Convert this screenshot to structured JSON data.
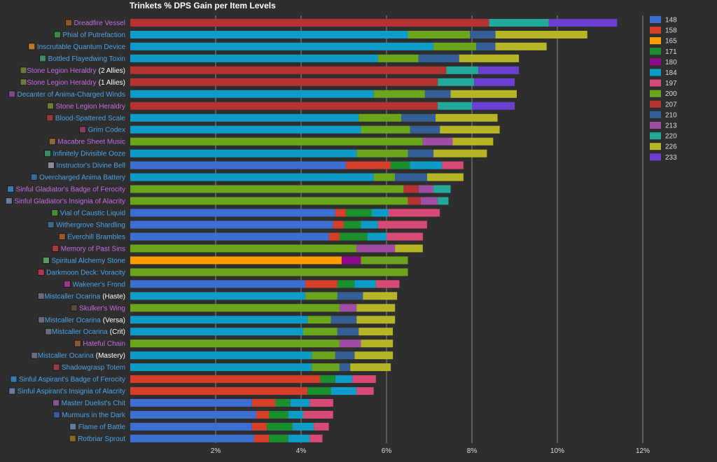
{
  "chart_data": {
    "type": "bar",
    "stacked": true,
    "orientation": "horizontal",
    "title": "Trinkets % DPS Gain per Item Levels",
    "xlim": [
      0,
      12
    ],
    "xticks": [
      "2%",
      "4%",
      "6%",
      "8%",
      "10%",
      "12%"
    ],
    "grid": true,
    "legend_position": "right",
    "legend": [
      {
        "name": "148",
        "color": "#3c6fd1"
      },
      {
        "name": "158",
        "color": "#d6402a"
      },
      {
        "name": "165",
        "color": "#ff9d00"
      },
      {
        "name": "171",
        "color": "#1a8f2e"
      },
      {
        "name": "180",
        "color": "#8e0b8e"
      },
      {
        "name": "184",
        "color": "#0d9bc7"
      },
      {
        "name": "197",
        "color": "#d84a76"
      },
      {
        "name": "200",
        "color": "#6aa51c"
      },
      {
        "name": "207",
        "color": "#b53232"
      },
      {
        "name": "210",
        "color": "#335f96"
      },
      {
        "name": "213",
        "color": "#a04ea5"
      },
      {
        "name": "220",
        "color": "#22a99a"
      },
      {
        "name": "226",
        "color": "#b5b526"
      },
      {
        "name": "233",
        "color": "#6a3fd1"
      }
    ],
    "rows": [
      {
        "label": "Dreadfire Vessel",
        "suffix": "",
        "label_color": "#c66ce0",
        "icon": "vessel-icon",
        "icon_color": "#8a5a2a",
        "segments": [
          [
            "207",
            8.4
          ],
          [
            "220",
            1.4
          ],
          [
            "233",
            1.6
          ]
        ]
      },
      {
        "label": "Phial of Putrefaction",
        "suffix": "",
        "label_color": "#4fa3e6",
        "icon": "phial-icon",
        "icon_color": "#3f8a3f",
        "segments": [
          [
            "184",
            6.5
          ],
          [
            "200",
            1.45
          ],
          [
            "210",
            0.6
          ],
          [
            "226",
            2.15
          ]
        ]
      },
      {
        "label": "Inscrutable Quantum Device",
        "suffix": "",
        "label_color": "#4fa3e6",
        "icon": "device-icon",
        "icon_color": "#c0782a",
        "segments": [
          [
            "184",
            7.1
          ],
          [
            "200",
            1.0
          ],
          [
            "210",
            0.45
          ],
          [
            "226",
            1.2
          ]
        ]
      },
      {
        "label": "Bottled Flayedwing Toxin",
        "suffix": "",
        "label_color": "#4fa3e6",
        "icon": "bottle-icon",
        "icon_color": "#3f8a6a",
        "segments": [
          [
            "184",
            5.8
          ],
          [
            "200",
            0.95
          ],
          [
            "210",
            0.95
          ],
          [
            "226",
            1.4
          ]
        ]
      },
      {
        "label": "Stone Legion Heraldry",
        "suffix": "(2 Allies)",
        "label_color": "#c66ce0",
        "icon": "heraldry-icon",
        "icon_color": "#6b7a3a",
        "segments": [
          [
            "207",
            7.4
          ],
          [
            "220",
            0.75
          ],
          [
            "233",
            0.95
          ]
        ]
      },
      {
        "label": "Stone Legion Heraldry",
        "suffix": "(1 Allies)",
        "label_color": "#c66ce0",
        "icon": "heraldry-icon",
        "icon_color": "#6b7a3a",
        "segments": [
          [
            "207",
            7.2
          ],
          [
            "220",
            0.85
          ],
          [
            "233",
            0.95
          ]
        ]
      },
      {
        "label": "Decanter of Anima-Charged Winds",
        "suffix": "",
        "label_color": "#4fa3e6",
        "icon": "decanter-icon",
        "icon_color": "#7a4a8a",
        "segments": [
          [
            "184",
            5.7
          ],
          [
            "200",
            1.2
          ],
          [
            "210",
            0.6
          ],
          [
            "226",
            1.55
          ]
        ]
      },
      {
        "label": "Stone Legion Heraldry",
        "suffix": "",
        "label_color": "#c66ce0",
        "icon": "heraldry-icon",
        "icon_color": "#6b7a3a",
        "segments": [
          [
            "207",
            7.2
          ],
          [
            "220",
            0.8
          ],
          [
            "233",
            1.0
          ]
        ]
      },
      {
        "label": "Blood-Spattered Scale",
        "suffix": "",
        "label_color": "#4fa3e6",
        "icon": "scale-icon",
        "icon_color": "#9a3a3a",
        "segments": [
          [
            "184",
            5.35
          ],
          [
            "200",
            1.0
          ],
          [
            "210",
            0.8
          ],
          [
            "226",
            1.45
          ]
        ]
      },
      {
        "label": "Grim Codex",
        "suffix": "",
        "label_color": "#4fa3e6",
        "icon": "codex-icon",
        "icon_color": "#8a3a5a",
        "segments": [
          [
            "184",
            5.4
          ],
          [
            "200",
            1.15
          ],
          [
            "210",
            0.7
          ],
          [
            "226",
            1.4
          ]
        ]
      },
      {
        "label": "Macabre Sheet Music",
        "suffix": "",
        "label_color": "#c66ce0",
        "icon": "sheet-music-icon",
        "icon_color": "#8a6a3a",
        "segments": [
          [
            "200",
            6.85
          ],
          [
            "213",
            0.7
          ],
          [
            "226",
            0.95
          ]
        ]
      },
      {
        "label": "Infinitely Divisible Ooze",
        "suffix": "",
        "label_color": "#4fa3e6",
        "icon": "ooze-icon",
        "icon_color": "#3a8a6a",
        "segments": [
          [
            "184",
            5.3
          ],
          [
            "200",
            1.2
          ],
          [
            "210",
            0.6
          ],
          [
            "226",
            1.25
          ]
        ]
      },
      {
        "label": "Instructor's Divine Bell",
        "suffix": "",
        "label_color": "#4fa3e6",
        "icon": "bell-icon",
        "icon_color": "#8a8aa0",
        "segments": [
          [
            "148",
            5.05
          ],
          [
            "158",
            1.05
          ],
          [
            "171",
            0.45
          ],
          [
            "184",
            0.75
          ],
          [
            "197",
            0.5
          ]
        ]
      },
      {
        "label": "Overcharged Anima Battery",
        "suffix": "",
        "label_color": "#4fa3e6",
        "icon": "battery-icon",
        "icon_color": "#3a6a9a",
        "segments": [
          [
            "184",
            5.7
          ],
          [
            "200",
            0.5
          ],
          [
            "210",
            0.75
          ],
          [
            "226",
            0.85
          ]
        ]
      },
      {
        "label": "Sinful Gladiator's Badge of Ferocity",
        "suffix": "",
        "label_color": "#c66ce0",
        "icon": "badge-icon",
        "icon_color": "#3a7ab0",
        "segments": [
          [
            "200",
            6.4
          ],
          [
            "207",
            0.35
          ],
          [
            "213",
            0.35
          ],
          [
            "220",
            0.4
          ]
        ]
      },
      {
        "label": "Sinful Gladiator's Insignia of Alacrity",
        "suffix": "",
        "label_color": "#c66ce0",
        "icon": "insignia-icon",
        "icon_color": "#6a7a9a",
        "segments": [
          [
            "200",
            6.5
          ],
          [
            "207",
            0.3
          ],
          [
            "213",
            0.4
          ],
          [
            "220",
            0.25
          ]
        ]
      },
      {
        "label": "Vial of Caustic Liquid",
        "suffix": "",
        "label_color": "#4fa3e6",
        "icon": "vial-icon",
        "icon_color": "#4a8a3a",
        "segments": [
          [
            "148",
            4.8
          ],
          [
            "158",
            0.25
          ],
          [
            "171",
            0.6
          ],
          [
            "184",
            0.4
          ],
          [
            "197",
            1.2
          ]
        ]
      },
      {
        "label": "Withergrove Shardling",
        "suffix": "",
        "label_color": "#4fa3e6",
        "icon": "shardling-icon",
        "icon_color": "#3a6a8a",
        "segments": [
          [
            "148",
            4.75
          ],
          [
            "158",
            0.25
          ],
          [
            "171",
            0.4
          ],
          [
            "184",
            0.4
          ],
          [
            "197",
            1.15
          ]
        ]
      },
      {
        "label": "Everchill Brambles",
        "suffix": "",
        "label_color": "#4fa3e6",
        "icon": "brambles-icon",
        "icon_color": "#9a5a2a",
        "segments": [
          [
            "148",
            4.65
          ],
          [
            "158",
            0.25
          ],
          [
            "171",
            0.65
          ],
          [
            "184",
            0.45
          ],
          [
            "197",
            0.85
          ]
        ]
      },
      {
        "label": "Memory of Past Sins",
        "suffix": "",
        "label_color": "#c66ce0",
        "icon": "memory-icon",
        "icon_color": "#b03a3a",
        "segments": [
          [
            "200",
            5.3
          ],
          [
            "213",
            0.9
          ],
          [
            "226",
            0.65
          ]
        ]
      },
      {
        "label": "Spiritual Alchemy Stone",
        "suffix": "",
        "label_color": "#4fa3e6",
        "icon": "stone-icon",
        "icon_color": "#5a9a5a",
        "segments": [
          [
            "165",
            4.95
          ],
          [
            "180",
            0.45
          ],
          [
            "200",
            1.1
          ]
        ]
      },
      {
        "label": "Darkmoon Deck: Voracity",
        "suffix": "",
        "label_color": "#4fa3e6",
        "icon": "deck-icon",
        "icon_color": "#b03a4a",
        "segments": [
          [
            "200",
            6.5
          ]
        ]
      },
      {
        "label": "Wakener's Frond",
        "suffix": "",
        "label_color": "#4fa3e6",
        "icon": "frond-icon",
        "icon_color": "#9a3a8a",
        "segments": [
          [
            "148",
            4.1
          ],
          [
            "158",
            0.75
          ],
          [
            "171",
            0.4
          ],
          [
            "184",
            0.5
          ],
          [
            "197",
            0.55
          ]
        ]
      },
      {
        "label": "Mistcaller Ocarina",
        "suffix": "(Haste)",
        "label_color": "#4fa3e6",
        "icon": "ocarina-icon",
        "icon_color": "#6a6a7a",
        "segments": [
          [
            "184",
            4.1
          ],
          [
            "200",
            0.75
          ],
          [
            "210",
            0.6
          ],
          [
            "226",
            0.8
          ]
        ]
      },
      {
        "label": "Skulker's Wing",
        "suffix": "",
        "label_color": "#c66ce0",
        "icon": "wing-icon",
        "icon_color": "#5a4a3a",
        "segments": [
          [
            "200",
            4.9
          ],
          [
            "213",
            0.4
          ],
          [
            "226",
            0.9
          ]
        ]
      },
      {
        "label": "Mistcaller Ocarina",
        "suffix": "(Versa)",
        "label_color": "#4fa3e6",
        "icon": "ocarina-icon",
        "icon_color": "#6a6a7a",
        "segments": [
          [
            "184",
            4.15
          ],
          [
            "200",
            0.55
          ],
          [
            "210",
            0.6
          ],
          [
            "226",
            0.9
          ]
        ]
      },
      {
        "label": "Mistcaller Ocarina",
        "suffix": "(Crit)",
        "label_color": "#4fa3e6",
        "icon": "ocarina-icon",
        "icon_color": "#6a6a7a",
        "segments": [
          [
            "184",
            4.05
          ],
          [
            "200",
            0.8
          ],
          [
            "210",
            0.5
          ],
          [
            "226",
            0.8
          ]
        ]
      },
      {
        "label": "Hateful Chain",
        "suffix": "",
        "label_color": "#c66ce0",
        "icon": "chain-icon",
        "icon_color": "#8a5a3a",
        "segments": [
          [
            "200",
            4.9
          ],
          [
            "213",
            0.5
          ],
          [
            "226",
            0.75
          ]
        ]
      },
      {
        "label": "Mistcaller Ocarina",
        "suffix": "(Mastery)",
        "label_color": "#4fa3e6",
        "icon": "ocarina-icon",
        "icon_color": "#6a6a7a",
        "segments": [
          [
            "184",
            4.25
          ],
          [
            "200",
            0.55
          ],
          [
            "210",
            0.45
          ],
          [
            "226",
            0.9
          ]
        ]
      },
      {
        "label": "Shadowgrasp Totem",
        "suffix": "",
        "label_color": "#4fa3e6",
        "icon": "totem-icon",
        "icon_color": "#9a3a4a",
        "segments": [
          [
            "184",
            4.25
          ],
          [
            "200",
            0.65
          ],
          [
            "210",
            0.25
          ],
          [
            "226",
            0.95
          ]
        ]
      },
      {
        "label": "Sinful Aspirant's Badge of Ferocity",
        "suffix": "",
        "label_color": "#4fa3e6",
        "icon": "badge-icon",
        "icon_color": "#3a7ab0",
        "segments": [
          [
            "158",
            4.45
          ],
          [
            "171",
            0.35
          ],
          [
            "184",
            0.4
          ],
          [
            "197",
            0.55
          ]
        ]
      },
      {
        "label": "Sinful Aspirant's Insignia of Alacrity",
        "suffix": "",
        "label_color": "#4fa3e6",
        "icon": "insignia-icon",
        "icon_color": "#6a7a9a",
        "segments": [
          [
            "158",
            4.15
          ],
          [
            "171",
            0.55
          ],
          [
            "184",
            0.6
          ],
          [
            "197",
            0.4
          ]
        ]
      },
      {
        "label": "Master Duelist's Chit",
        "suffix": "",
        "label_color": "#4fa3e6",
        "icon": "chit-icon",
        "icon_color": "#7a5a8a",
        "segments": [
          [
            "148",
            2.85
          ],
          [
            "158",
            0.55
          ],
          [
            "171",
            0.35
          ],
          [
            "184",
            0.45
          ],
          [
            "197",
            0.55
          ]
        ]
      },
      {
        "label": "Murmurs in the Dark",
        "suffix": "",
        "label_color": "#4fa3e6",
        "icon": "murmurs-icon",
        "icon_color": "#3a5a9a",
        "segments": [
          [
            "148",
            2.95
          ],
          [
            "158",
            0.3
          ],
          [
            "171",
            0.45
          ],
          [
            "184",
            0.35
          ],
          [
            "197",
            0.7
          ]
        ]
      },
      {
        "label": "Flame of Battle",
        "suffix": "",
        "label_color": "#4fa3e6",
        "icon": "flame-icon",
        "icon_color": "#6a7a9a",
        "segments": [
          [
            "148",
            2.85
          ],
          [
            "158",
            0.35
          ],
          [
            "171",
            0.6
          ],
          [
            "184",
            0.5
          ],
          [
            "197",
            0.35
          ]
        ]
      },
      {
        "label": "Rotbriar Sprout",
        "suffix": "",
        "label_color": "#4fa3e6",
        "icon": "sprout-icon",
        "icon_color": "#8a6a2a",
        "segments": [
          [
            "148",
            2.9
          ],
          [
            "158",
            0.35
          ],
          [
            "171",
            0.45
          ],
          [
            "184",
            0.5
          ],
          [
            "197",
            0.3
          ]
        ]
      }
    ]
  }
}
